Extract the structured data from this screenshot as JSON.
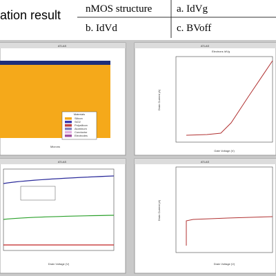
{
  "header": {
    "title": "ation result"
  },
  "table": {
    "rows": [
      [
        "nMOS structure",
        "a. IdVg"
      ],
      [
        "b. IdVd",
        "c. BVoff"
      ]
    ]
  },
  "panels": [
    {
      "title": "ATLAS",
      "x_label": "Microns",
      "legend": {
        "title": "Materials",
        "items": [
          "Silicon",
          "SiO2",
          "Polysilicon",
          "Aluminum",
          "Conductor",
          "Electrodes"
        ]
      }
    },
    {
      "title": "ATLAS",
      "subtitle": "Electrons IdVg",
      "x_label": "Gate Voltage (V)",
      "y_label": "Drain Current (A)"
    },
    {
      "title": "ATLAS",
      "x_label": "Drain Voltage (V)"
    },
    {
      "title": "ATLAS",
      "x_label": "Drain Voltage (V)",
      "y_label": "Drain Current (A)"
    }
  ]
}
